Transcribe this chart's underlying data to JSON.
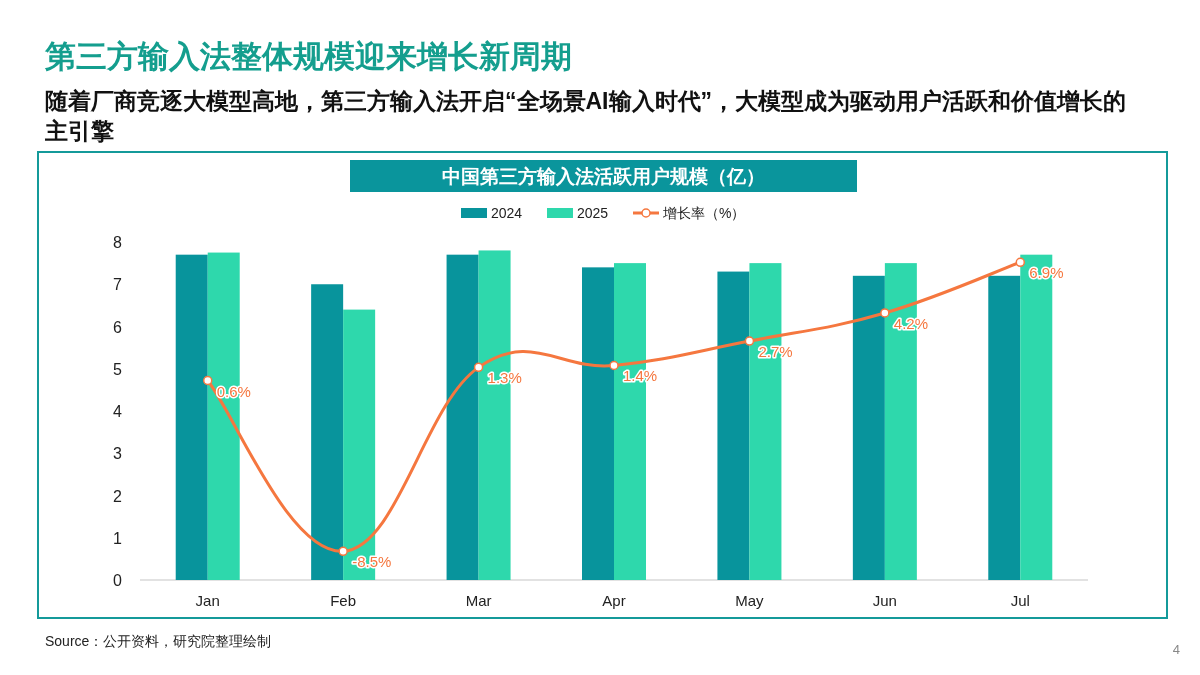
{
  "chart_data": {
    "type": "bar",
    "title": "第三方输入法整体规模迎来增长新周期",
    "subtitle": "随着厂商竞逐大模型高地，第三方输入法开启“全场景AI输入时代”，大模型成为驱动用户活跃和价值增长的主引擎",
    "annotations": [
      "中国第三方输入法活跃用户规模（亿）",
      "Source：公开资料，研究院整理绘制",
      "4"
    ],
    "categories": [
      "Jan",
      "Feb",
      "Mar",
      "Apr",
      "May",
      "Jun",
      "Jul"
    ],
    "series": [
      {
        "name": "2024",
        "color": "#08949c",
        "values": [
          7.7,
          7.0,
          7.7,
          7.4,
          7.3,
          7.2,
          7.2
        ]
      },
      {
        "name": "2025",
        "color": "#2ed8ac",
        "values": [
          7.75,
          6.4,
          7.8,
          7.5,
          7.5,
          7.5,
          7.7
        ]
      },
      {
        "name": "增长率（%）",
        "type": "line",
        "axis": "y2",
        "color": "#f5773f",
        "values": [
          0.6,
          -8.5,
          1.3,
          1.4,
          2.7,
          4.2,
          6.9
        ],
        "value_labels": [
          "0.6%",
          "-8.5%",
          "1.3%",
          "1.4%",
          "2.7%",
          "4.2%",
          "6.9%"
        ]
      }
    ],
    "ylim": [
      0,
      8
    ],
    "yticks": [
      0,
      1,
      2,
      3,
      4,
      5,
      6,
      7,
      8
    ],
    "legend": "top",
    "marker": "circle",
    "grid": false
  }
}
